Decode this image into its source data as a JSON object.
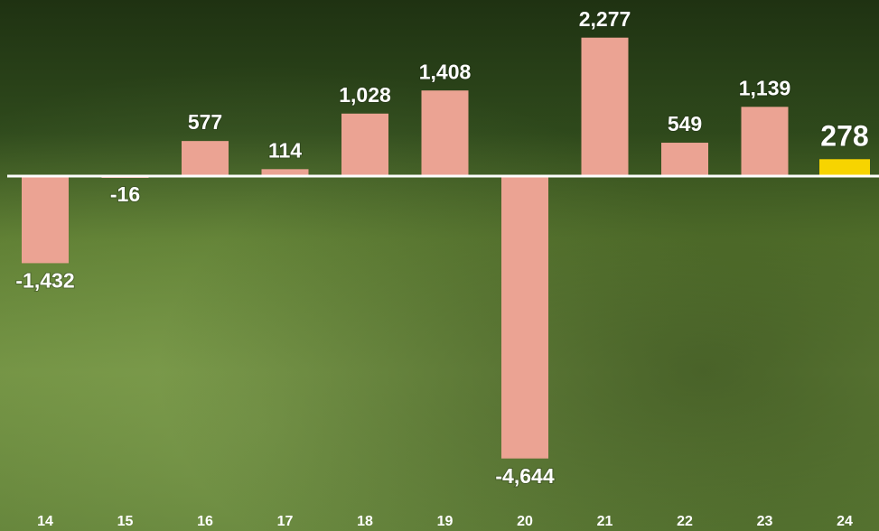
{
  "chart_data": {
    "type": "bar",
    "categories": [
      "14",
      "15",
      "16",
      "17",
      "18",
      "19",
      "20",
      "21",
      "22",
      "23",
      "24"
    ],
    "values": [
      -1432,
      -16,
      577,
      114,
      1028,
      1408,
      -4644,
      2277,
      549,
      1139,
      278
    ],
    "value_labels": [
      "-1,432",
      "-16",
      "577",
      "114",
      "1,028",
      "1,408",
      "-4,644",
      "2,277",
      "549",
      "1,139",
      "278"
    ],
    "colors": [
      "#eba393",
      "#eba393",
      "#eba393",
      "#eba393",
      "#eba393",
      "#eba393",
      "#eba393",
      "#eba393",
      "#eba393",
      "#eba393",
      "#f7d400"
    ]
  }
}
